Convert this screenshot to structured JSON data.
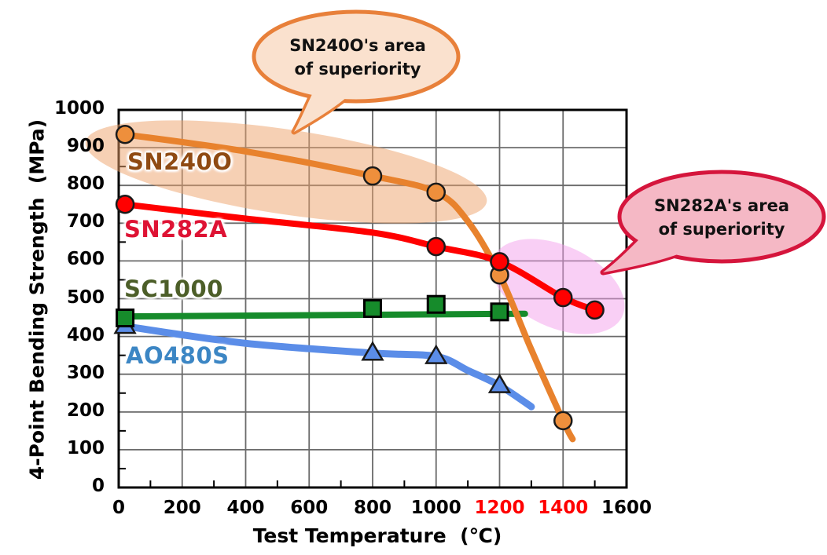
{
  "chart_data": {
    "type": "line",
    "title": "",
    "xlabel": "Test Temperature  (℃)",
    "ylabel": "4-Point Bending Strength  (MPa)",
    "xlim": [
      0,
      1600
    ],
    "ylim": [
      0,
      1000
    ],
    "grid": true,
    "x_ticks": [
      {
        "value": 0,
        "label": "0",
        "color": "#000000"
      },
      {
        "value": 200,
        "label": "200",
        "color": "#000000"
      },
      {
        "value": 400,
        "label": "400",
        "color": "#000000"
      },
      {
        "value": 600,
        "label": "600",
        "color": "#000000"
      },
      {
        "value": 800,
        "label": "800",
        "color": "#000000"
      },
      {
        "value": 1000,
        "label": "1000",
        "color": "#000000"
      },
      {
        "value": 1200,
        "label": "1200",
        "color": "#FF0000"
      },
      {
        "value": 1400,
        "label": "1400",
        "color": "#FF0000"
      },
      {
        "value": 1600,
        "label": "1600",
        "color": "#000000"
      }
    ],
    "y_ticks": [
      {
        "value": 0,
        "label": "0"
      },
      {
        "value": 100,
        "label": "100"
      },
      {
        "value": 200,
        "label": "200"
      },
      {
        "value": 300,
        "label": "300"
      },
      {
        "value": 400,
        "label": "400"
      },
      {
        "value": 500,
        "label": "500"
      },
      {
        "value": 600,
        "label": "600"
      },
      {
        "value": 700,
        "label": "700"
      },
      {
        "value": 800,
        "label": "800"
      },
      {
        "value": 900,
        "label": "900"
      },
      {
        "value": 1000,
        "label": "1000"
      }
    ],
    "x_minor_step": 100,
    "y_minor_step": 50,
    "series": [
      {
        "id": "ao480s",
        "name": "AO480S",
        "marker": "triangle",
        "line_color": "#5B8DE8",
        "marker_color": "#5B8DE8",
        "label_color": "#3C86C4",
        "markers": [
          [
            20,
            427
          ],
          [
            800,
            356
          ],
          [
            1000,
            347
          ],
          [
            1200,
            270
          ]
        ],
        "line": [
          [
            20,
            427
          ],
          [
            400,
            382
          ],
          [
            800,
            356
          ],
          [
            1000,
            347
          ],
          [
            1100,
            310
          ],
          [
            1200,
            270
          ],
          [
            1300,
            214
          ]
        ]
      },
      {
        "id": "sc1000",
        "name": "SC1000",
        "marker": "square",
        "line_color": "#168B2B",
        "marker_color": "#168B2B",
        "label_color": "#4C5E28",
        "markers": [
          [
            20,
            449
          ],
          [
            800,
            474
          ],
          [
            1000,
            485
          ],
          [
            1200,
            465
          ]
        ],
        "line": [
          [
            20,
            453
          ],
          [
            1280,
            460
          ]
        ]
      },
      {
        "id": "sn240o",
        "name": "SN240O",
        "marker": "circle",
        "line_color": "#E8822D",
        "marker_color": "#EE8F3C",
        "label_color": "#8F4A12",
        "markers": [
          [
            20,
            935
          ],
          [
            800,
            825
          ],
          [
            1000,
            782
          ],
          [
            1200,
            563
          ],
          [
            1400,
            177
          ]
        ],
        "line": [
          [
            20,
            935
          ],
          [
            400,
            890
          ],
          [
            800,
            825
          ],
          [
            1000,
            782
          ],
          [
            1100,
            705
          ],
          [
            1200,
            563
          ],
          [
            1300,
            365
          ],
          [
            1400,
            177
          ],
          [
            1430,
            128
          ]
        ]
      },
      {
        "id": "sn282a",
        "name": "SN282A",
        "marker": "circle",
        "line_color": "#FF0000",
        "marker_color": "#FF0000",
        "label_color": "#DE1334",
        "markers": [
          [
            20,
            750
          ],
          [
            1000,
            638
          ],
          [
            1200,
            598
          ],
          [
            1400,
            503
          ],
          [
            1500,
            470
          ]
        ],
        "line": [
          [
            20,
            750
          ],
          [
            400,
            712
          ],
          [
            800,
            675
          ],
          [
            1000,
            638
          ],
          [
            1200,
            598
          ],
          [
            1400,
            503
          ],
          [
            1500,
            470
          ]
        ]
      }
    ],
    "annotations": {
      "callouts": [
        {
          "id": "sn240o",
          "line1": "SN240O's area",
          "line2": "of superiority",
          "fill": "#FAE1CE",
          "stroke": "#E8803A",
          "text_color": "#111111"
        },
        {
          "id": "sn282a",
          "line1": "SN282A's area",
          "line2": "of superiority",
          "fill": "#F5B8C5",
          "stroke": "#D5153C",
          "text_color": "#111111"
        }
      ],
      "highlights": [
        {
          "id": "sn240o-region",
          "series": "SN240O",
          "color": "rgba(238,162,106,0.5)"
        },
        {
          "id": "sn282a-region",
          "series": "SN282A",
          "color": "rgba(242,155,235,0.48)"
        }
      ]
    },
    "colors": {
      "grid": "#6A6A6A",
      "border": "#000000",
      "background": "#FFFFFF"
    }
  }
}
